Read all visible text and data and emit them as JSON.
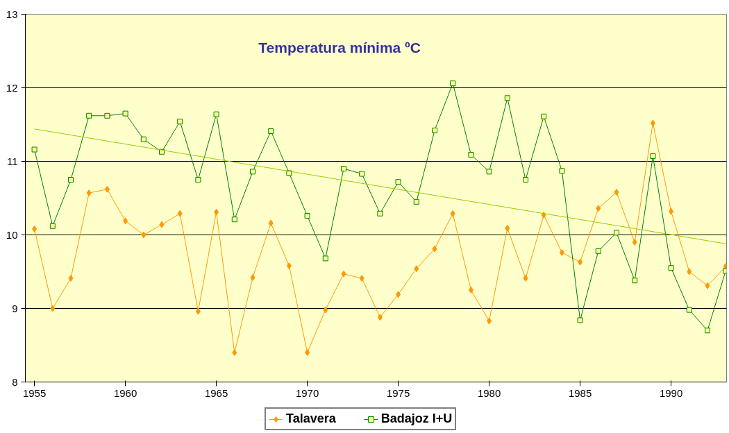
{
  "chart_data": {
    "type": "line",
    "title": "Temperatura mínima ºC",
    "x": [
      1955,
      1956,
      1957,
      1958,
      1959,
      1960,
      1961,
      1962,
      1963,
      1964,
      1965,
      1966,
      1967,
      1968,
      1969,
      1970,
      1971,
      1972,
      1973,
      1974,
      1975,
      1976,
      1977,
      1978,
      1979,
      1980,
      1981,
      1982,
      1983,
      1984,
      1985,
      1986,
      1987,
      1988,
      1989,
      1990,
      1991,
      1992,
      1993
    ],
    "series": [
      {
        "name": "Talavera",
        "color": "#ff9900",
        "marker": "diamond",
        "values": [
          10.08,
          9.0,
          9.41,
          10.57,
          10.62,
          10.19,
          10.0,
          10.14,
          10.29,
          8.96,
          10.31,
          8.4,
          9.42,
          10.16,
          9.58,
          8.4,
          8.98,
          9.47,
          9.41,
          8.88,
          9.19,
          9.54,
          9.81,
          10.29,
          9.25,
          8.83,
          10.09,
          9.41,
          10.27,
          9.76,
          9.63,
          10.36,
          10.58,
          9.9,
          11.52,
          10.32,
          9.5,
          9.31,
          9.57
        ]
      },
      {
        "name": "Badajoz I+U",
        "color": "#008000",
        "marker": "square",
        "values": [
          11.16,
          10.12,
          10.75,
          11.62,
          11.62,
          11.65,
          11.3,
          11.13,
          11.54,
          10.75,
          11.64,
          10.21,
          10.86,
          11.41,
          10.84,
          10.26,
          9.68,
          10.9,
          10.83,
          10.29,
          10.72,
          10.45,
          11.42,
          12.06,
          11.09,
          10.86,
          11.86,
          10.75,
          11.61,
          10.87,
          8.84,
          9.78,
          10.03,
          9.38,
          11.07,
          9.55,
          8.98,
          8.7,
          9.51
        ]
      },
      {
        "color": "#99cc00",
        "marker": "none",
        "x": [
          1955,
          1993
        ],
        "values": [
          11.44,
          9.88
        ]
      }
    ],
    "xlim": [
      1954.5,
      1993.05
    ],
    "xticks": [
      1955,
      1960,
      1965,
      1970,
      1975,
      1980,
      1985,
      1990
    ],
    "ylim": [
      8,
      13
    ],
    "yticks": [
      8,
      9,
      10,
      11,
      12,
      13
    ],
    "grid": "y",
    "legend": "bottom"
  }
}
